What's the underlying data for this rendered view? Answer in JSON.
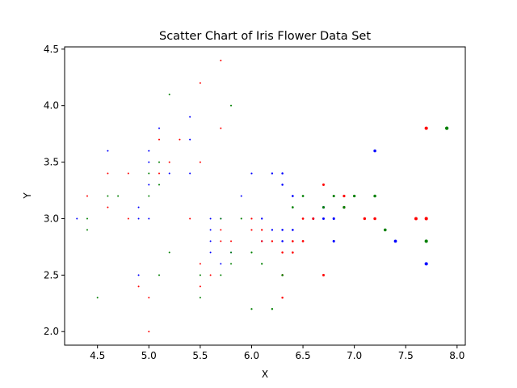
{
  "chart_data": {
    "type": "scatter",
    "title": "Scatter Chart of Iris Flower Data Set",
    "xlabel": "X",
    "ylabel": "Y",
    "xlim": [
      4.18,
      8.08
    ],
    "ylim": [
      1.88,
      4.52
    ],
    "xticks": [
      "4.5",
      "5.0",
      "5.5",
      "6.0",
      "6.5",
      "7.0",
      "7.5",
      "8.0"
    ],
    "yticks": [
      "2.0",
      "2.5",
      "3.0",
      "3.5",
      "4.0",
      "4.5"
    ],
    "grid": false,
    "series": [
      {
        "color": "#0000ff",
        "points": [
          [
            4.3,
            3.0
          ],
          [
            4.6,
            3.6
          ],
          [
            4.9,
            3.1
          ],
          [
            4.9,
            3.0
          ],
          [
            5.0,
            3.6
          ],
          [
            5.0,
            3.5
          ],
          [
            5.0,
            3.3
          ],
          [
            5.0,
            3.0
          ],
          [
            5.1,
            3.8
          ],
          [
            5.2,
            3.4
          ],
          [
            5.4,
            3.9
          ],
          [
            5.4,
            3.7
          ],
          [
            5.4,
            3.4
          ],
          [
            4.9,
            2.5
          ],
          [
            5.6,
            3.0
          ],
          [
            5.6,
            2.9
          ],
          [
            5.6,
            2.8
          ],
          [
            5.6,
            2.7
          ],
          [
            5.7,
            2.6
          ],
          [
            5.7,
            3.0
          ],
          [
            5.8,
            2.7
          ],
          [
            5.9,
            3.2
          ],
          [
            6.0,
            3.4
          ],
          [
            6.1,
            3.0
          ],
          [
            6.1,
            2.8
          ],
          [
            6.2,
            3.4
          ],
          [
            6.2,
            2.9
          ],
          [
            6.3,
            3.4
          ],
          [
            6.3,
            3.3
          ],
          [
            6.3,
            2.9
          ],
          [
            6.3,
            2.8
          ],
          [
            6.4,
            3.2
          ],
          [
            6.4,
            2.9
          ],
          [
            6.6,
            3.0
          ],
          [
            6.7,
            3.1
          ],
          [
            6.7,
            3.0
          ],
          [
            6.8,
            3.0
          ],
          [
            6.8,
            2.8
          ],
          [
            7.2,
            3.6
          ],
          [
            7.4,
            2.8
          ],
          [
            7.7,
            2.6
          ]
        ]
      },
      {
        "color": "#ff0000",
        "points": [
          [
            4.4,
            3.2
          ],
          [
            4.6,
            3.4
          ],
          [
            4.6,
            3.1
          ],
          [
            4.8,
            3.4
          ],
          [
            4.8,
            3.0
          ],
          [
            4.9,
            2.4
          ],
          [
            5.0,
            2.3
          ],
          [
            5.0,
            2.0
          ],
          [
            5.1,
            3.7
          ],
          [
            5.1,
            3.4
          ],
          [
            5.2,
            3.5
          ],
          [
            5.3,
            3.7
          ],
          [
            5.4,
            3.0
          ],
          [
            5.5,
            4.2
          ],
          [
            5.5,
            3.5
          ],
          [
            5.5,
            2.6
          ],
          [
            5.5,
            2.4
          ],
          [
            5.6,
            2.5
          ],
          [
            5.7,
            4.4
          ],
          [
            5.7,
            3.8
          ],
          [
            5.7,
            2.9
          ],
          [
            5.7,
            2.8
          ],
          [
            5.8,
            2.8
          ],
          [
            6.0,
            3.0
          ],
          [
            6.0,
            2.9
          ],
          [
            6.1,
            2.9
          ],
          [
            6.1,
            2.8
          ],
          [
            6.2,
            2.8
          ],
          [
            6.3,
            2.7
          ],
          [
            6.3,
            2.5
          ],
          [
            6.3,
            2.3
          ],
          [
            6.4,
            2.8
          ],
          [
            6.4,
            2.7
          ],
          [
            6.5,
            3.0
          ],
          [
            6.5,
            2.8
          ],
          [
            6.6,
            3.0
          ],
          [
            6.7,
            3.3
          ],
          [
            6.7,
            2.5
          ],
          [
            6.9,
            3.2
          ],
          [
            6.9,
            3.1
          ],
          [
            7.1,
            3.0
          ],
          [
            7.2,
            3.0
          ],
          [
            7.6,
            3.0
          ],
          [
            7.7,
            3.8
          ],
          [
            7.7,
            3.0
          ]
        ]
      },
      {
        "color": "#008000",
        "points": [
          [
            4.4,
            3.0
          ],
          [
            4.4,
            2.9
          ],
          [
            4.5,
            2.3
          ],
          [
            4.6,
            3.2
          ],
          [
            4.7,
            3.2
          ],
          [
            5.0,
            3.4
          ],
          [
            5.0,
            3.2
          ],
          [
            5.1,
            3.5
          ],
          [
            5.1,
            3.3
          ],
          [
            5.1,
            2.5
          ],
          [
            5.2,
            4.1
          ],
          [
            5.2,
            2.7
          ],
          [
            5.5,
            2.5
          ],
          [
            5.5,
            2.3
          ],
          [
            5.7,
            2.5
          ],
          [
            5.7,
            3.0
          ],
          [
            5.8,
            4.0
          ],
          [
            5.8,
            2.7
          ],
          [
            5.8,
            2.6
          ],
          [
            5.9,
            3.0
          ],
          [
            6.0,
            2.7
          ],
          [
            6.0,
            2.2
          ],
          [
            6.1,
            2.6
          ],
          [
            6.2,
            2.2
          ],
          [
            6.3,
            2.5
          ],
          [
            6.4,
            3.1
          ],
          [
            6.5,
            3.2
          ],
          [
            6.7,
            3.1
          ],
          [
            6.8,
            3.2
          ],
          [
            6.9,
            3.1
          ],
          [
            7.0,
            3.2
          ],
          [
            7.2,
            3.2
          ],
          [
            7.3,
            2.9
          ],
          [
            7.7,
            2.8
          ],
          [
            7.9,
            3.8
          ]
        ]
      }
    ]
  }
}
